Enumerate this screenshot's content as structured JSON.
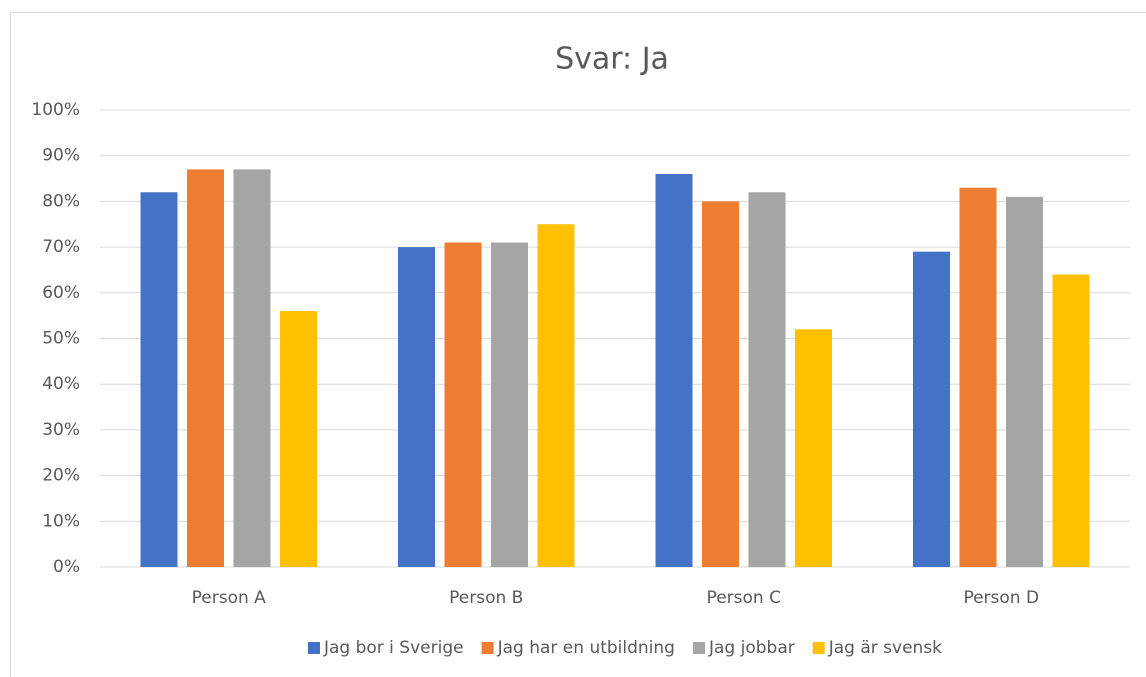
{
  "chart_data": {
    "type": "bar",
    "title": "Svar: Ja",
    "categories": [
      "Person A",
      "Person B",
      "Person C",
      "Person D"
    ],
    "series": [
      {
        "name": "Jag bor i Sverige",
        "color": "#4472c4",
        "values": [
          82,
          70,
          86,
          69
        ]
      },
      {
        "name": "Jag har en utbildning",
        "color": "#ed7d31",
        "values": [
          87,
          71,
          80,
          83
        ]
      },
      {
        "name": "Jag jobbar",
        "color": "#a5a5a5",
        "values": [
          87,
          71,
          82,
          81
        ]
      },
      {
        "name": "Jag är svensk",
        "color": "#ffc000",
        "values": [
          56,
          75,
          52,
          64
        ]
      }
    ],
    "ylim": [
      0,
      100
    ],
    "yticks": [
      {
        "value": 0,
        "label": "0%"
      },
      {
        "value": 10,
        "label": "10%"
      },
      {
        "value": 20,
        "label": "20%"
      },
      {
        "value": 30,
        "label": "30%"
      },
      {
        "value": 40,
        "label": "40%"
      },
      {
        "value": 50,
        "label": "50%"
      },
      {
        "value": 60,
        "label": "60%"
      },
      {
        "value": 70,
        "label": "70%"
      },
      {
        "value": 80,
        "label": "80%"
      },
      {
        "value": 90,
        "label": "90%"
      },
      {
        "value": 100,
        "label": "100%"
      }
    ],
    "grid": true,
    "legend": "bottom"
  }
}
